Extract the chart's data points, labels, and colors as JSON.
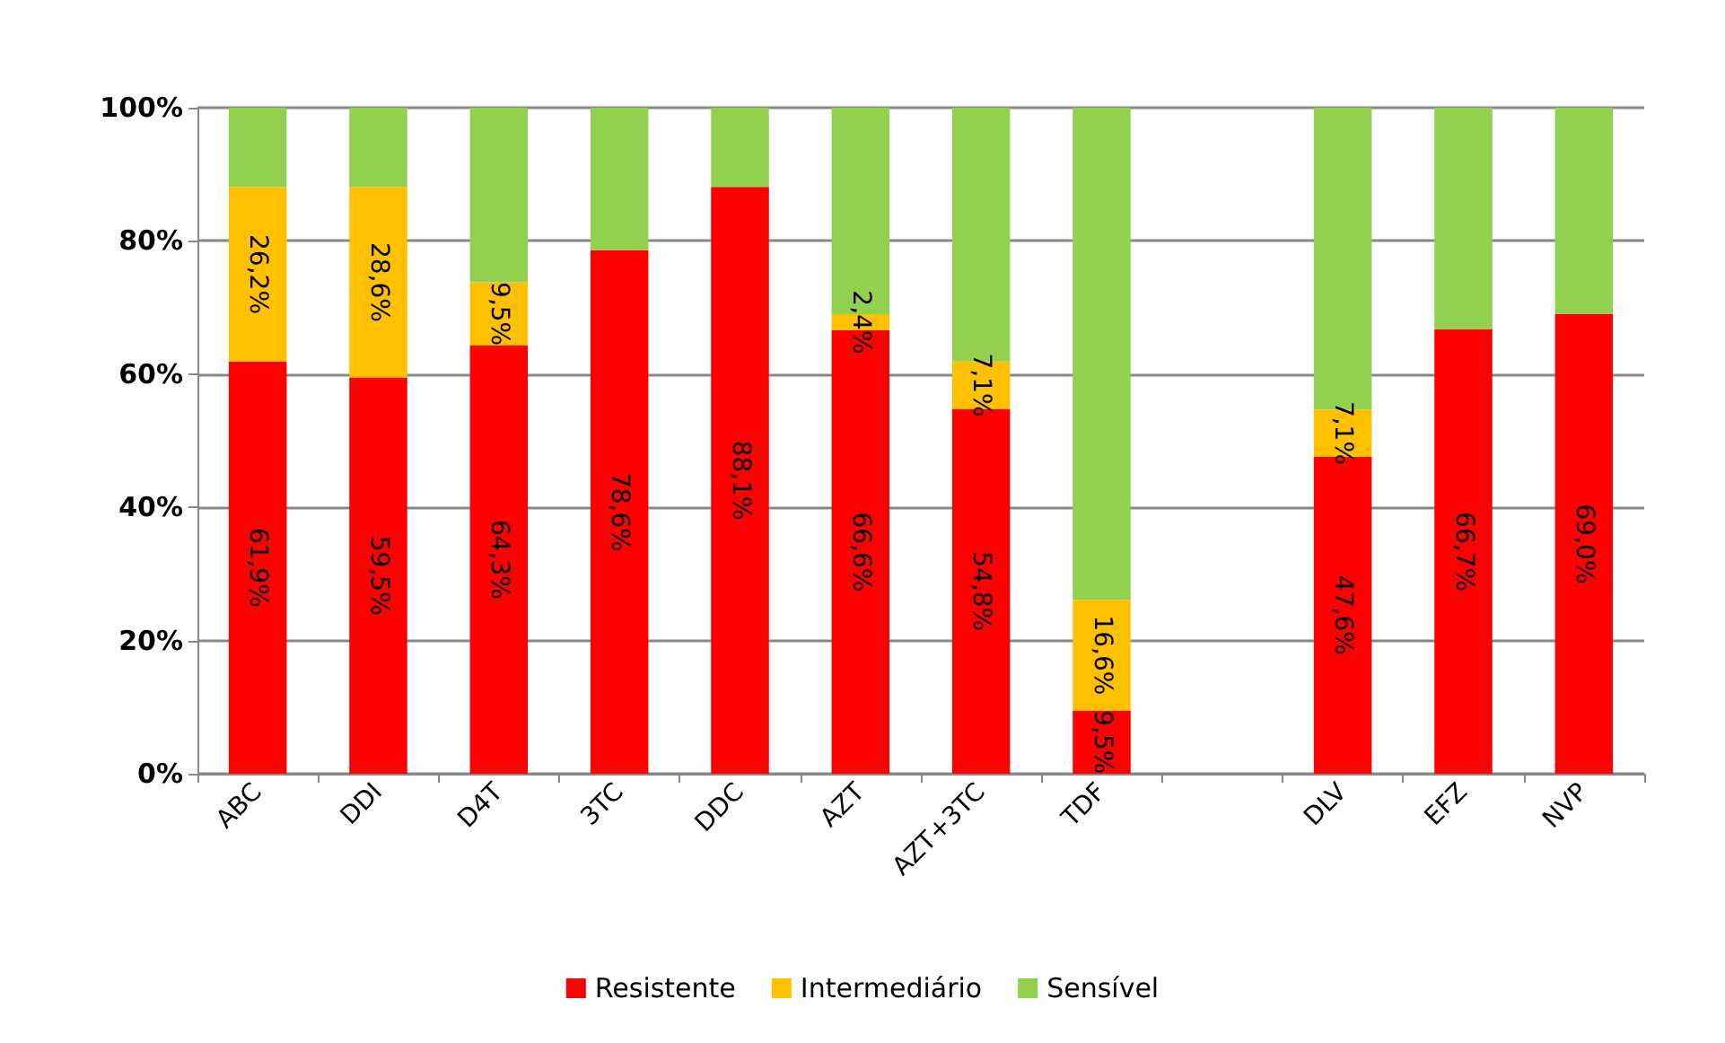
{
  "chart_data": {
    "type": "bar",
    "stacked": true,
    "categories": [
      "ABC",
      "DDI",
      "D4T",
      "3TC",
      "DDC",
      "AZT",
      "AZT+3TC",
      "TDF",
      null,
      "DLV",
      "EFZ",
      "NVP"
    ],
    "series": [
      {
        "name": "Resistente",
        "color": "#ff0000",
        "values": [
          61.9,
          59.5,
          64.3,
          78.6,
          88.1,
          66.6,
          54.8,
          9.5,
          null,
          47.6,
          66.7,
          69.0
        ],
        "value_labels": [
          "61,9%",
          "59,5%",
          "64,3%",
          "78,6%",
          "88,1%",
          "66,6%",
          "54,8%",
          "9,5%",
          null,
          "47,6%",
          "66,7%",
          "69,0%"
        ]
      },
      {
        "name": "Intermediário",
        "color": "#ffc000",
        "values": [
          26.2,
          28.6,
          9.5,
          null,
          null,
          2.4,
          7.1,
          16.6,
          null,
          7.1,
          null,
          null
        ],
        "value_labels": [
          "26,2%",
          "28,6%",
          "9,5%",
          null,
          null,
          "2,4%",
          "7,1%",
          "16,6%",
          null,
          "7,1%",
          null,
          null
        ]
      },
      {
        "name": "Sensível",
        "color": "#92d050",
        "values": [
          11.9,
          11.9,
          26.2,
          21.4,
          11.9,
          31.0,
          38.1,
          73.9,
          null,
          45.3,
          33.3,
          31.0
        ]
      }
    ],
    "ylim": [
      0,
      100
    ],
    "yticks": [
      {
        "value": 0,
        "label": "0%"
      },
      {
        "value": 20,
        "label": "20%"
      },
      {
        "value": 40,
        "label": "40%"
      },
      {
        "value": 60,
        "label": "60%"
      },
      {
        "value": 80,
        "label": "80%"
      },
      {
        "value": 100,
        "label": "100%"
      }
    ],
    "grid": "y",
    "legend": "bottom"
  }
}
